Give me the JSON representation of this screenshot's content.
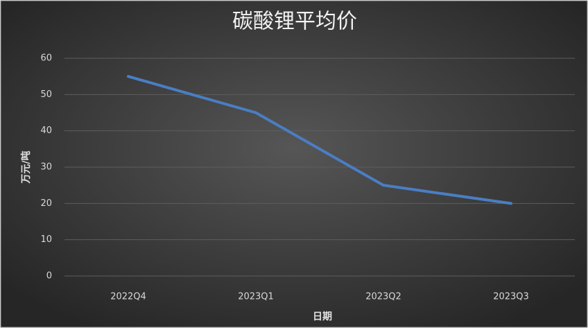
{
  "chart_data": {
    "type": "line",
    "title": "碳酸锂平均价",
    "x_label": "日期",
    "y_label": "万元/吨",
    "categories": [
      "2022Q4",
      "2023Q1",
      "2023Q2",
      "2023Q3"
    ],
    "series": [
      {
        "name": "碳酸锂平均价",
        "color": "#4a7ec4",
        "values": [
          55,
          45,
          25,
          20
        ]
      }
    ],
    "ylim": [
      0,
      60
    ],
    "yticks": [
      0,
      10,
      20,
      30,
      40,
      50,
      60
    ],
    "grid": true
  }
}
